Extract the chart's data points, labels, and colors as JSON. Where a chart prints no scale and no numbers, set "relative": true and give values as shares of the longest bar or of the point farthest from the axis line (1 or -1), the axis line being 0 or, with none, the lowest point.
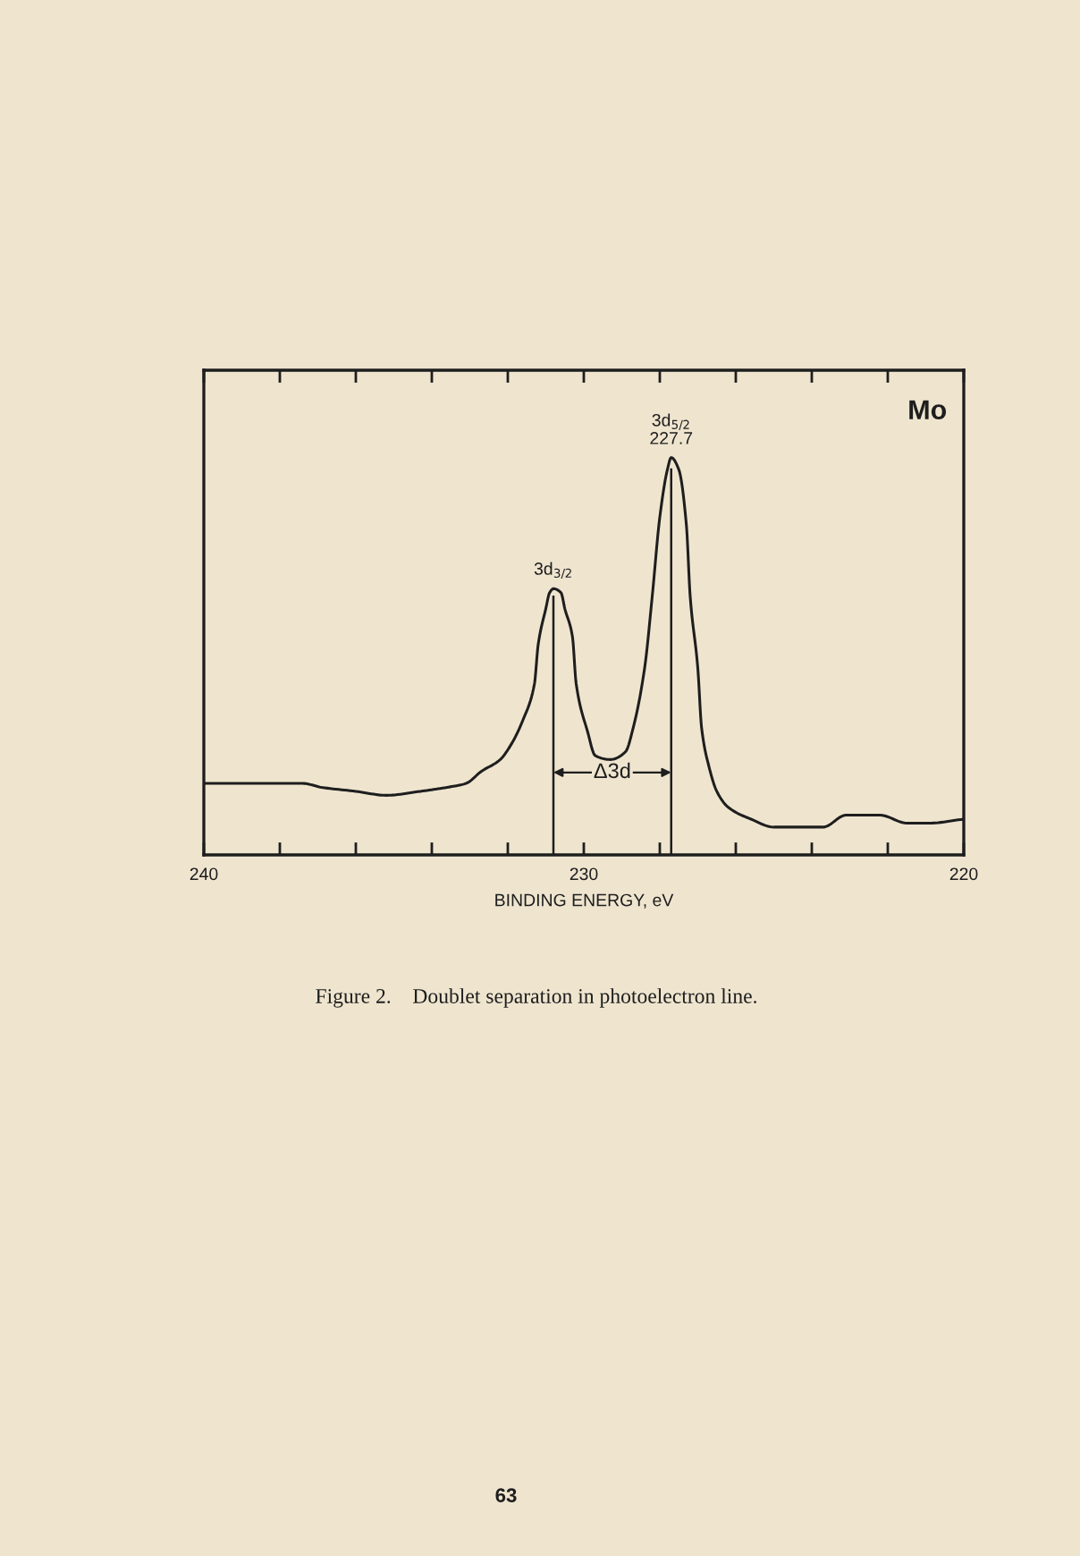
{
  "chart_data": {
    "type": "line",
    "relative": true,
    "xlabel": "BINDING ENERGY, eV",
    "x": [
      240.0,
      238.8,
      238.3,
      237.4,
      236.9,
      236.0,
      235.2,
      234.3,
      233.6,
      233.1,
      232.7,
      232.2,
      231.9,
      231.6,
      231.3,
      231.2,
      231.0,
      230.9,
      230.8,
      230.6,
      230.5,
      230.3,
      230.2,
      229.9,
      229.7,
      229.3,
      228.9,
      228.7,
      228.4,
      228.2,
      228.0,
      227.8,
      227.7,
      227.5,
      227.3,
      227.2,
      227.0,
      226.9,
      226.7,
      226.5,
      226.2,
      225.6,
      225.0,
      224.3,
      223.7,
      223.1,
      222.6,
      222.2,
      221.5,
      220.9,
      220.0
    ],
    "series": [
      {
        "color": "#1e1e1e",
        "values": [
          0.18,
          0.18,
          0.18,
          0.18,
          0.17,
          0.16,
          0.15,
          0.16,
          0.17,
          0.18,
          0.21,
          0.24,
          0.28,
          0.34,
          0.43,
          0.53,
          0.62,
          0.66,
          0.67,
          0.66,
          0.62,
          0.55,
          0.43,
          0.31,
          0.25,
          0.24,
          0.26,
          0.32,
          0.47,
          0.65,
          0.85,
          0.97,
          1,
          0.97,
          0.83,
          0.65,
          0.47,
          0.32,
          0.22,
          0.16,
          0.12,
          0.09,
          0.07,
          0.07,
          0.07,
          0.1,
          0.1,
          0.1,
          0.08,
          0.08,
          0.09
        ]
      }
    ],
    "xlim": [
      240,
      220
    ],
    "xticks": [
      240,
      {
        "value": 238,
        "label": null
      },
      {
        "value": 236,
        "label": null
      },
      {
        "value": 234,
        "label": null
      },
      {
        "value": 232,
        "label": null
      },
      230,
      {
        "value": 228,
        "label": null
      },
      {
        "value": 226,
        "label": null
      },
      {
        "value": 224,
        "label": null
      },
      {
        "value": 222,
        "label": null
      },
      220
    ],
    "tick_labels": "x",
    "ref_lines": [
      {
        "axis": "x",
        "value": 230.8
      },
      {
        "axis": "x",
        "value": 227.7
      }
    ],
    "annotations": [
      {
        "text": "3d$_{3/2}$",
        "x": 230.8,
        "y": 0.67
      },
      {
        "text": "3d$_{5/2}$\n227.7",
        "x": 227.7,
        "y": 1
      },
      "Δ3d",
      "Mo",
      "Figure 2.    Doublet separation in photoelectron line.",
      "63"
    ]
  }
}
